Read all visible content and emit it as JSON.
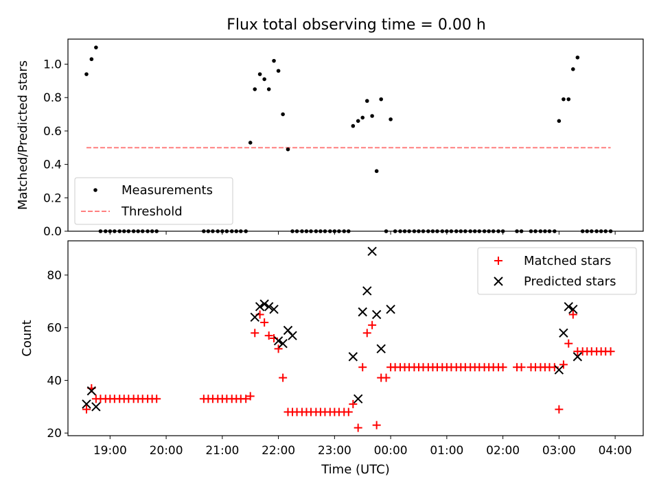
{
  "figure": {
    "title": "Flux total observing time = 0.00 h"
  },
  "colors": {
    "measurement": "#000000",
    "threshold": "#ff7f7f",
    "matched": "#ff0000",
    "predicted": "#000000"
  },
  "chart_data": [
    {
      "type": "scatter",
      "title": "Flux total observing time = 0.00 h",
      "xlabel": "",
      "ylabel": "Matched/Predicted stars",
      "xlim_hours": [
        18.25,
        28.5
      ],
      "ylim": [
        0,
        1.15
      ],
      "yticks": [
        0.0,
        0.2,
        0.4,
        0.6,
        0.8,
        1.0
      ],
      "ytick_labels": [
        "0.0",
        "0.2",
        "0.4",
        "0.6",
        "0.8",
        "1.0"
      ],
      "legend": {
        "position": "lower-left",
        "entries": [
          "Measurements",
          "Threshold"
        ]
      },
      "threshold": {
        "name": "Threshold",
        "value": 0.5,
        "x_range_hours": [
          18.58,
          27.92
        ]
      },
      "series": [
        {
          "name": "Measurements",
          "x_hours": [
            18.58,
            18.67,
            18.75,
            18.83,
            18.92,
            19.0,
            19.08,
            19.17,
            19.25,
            19.33,
            19.42,
            19.5,
            19.58,
            19.67,
            19.75,
            19.83,
            20.67,
            20.75,
            20.83,
            20.92,
            21.0,
            21.08,
            21.17,
            21.25,
            21.33,
            21.42,
            21.5,
            21.58,
            21.67,
            21.75,
            21.83,
            21.92,
            22.0,
            22.08,
            22.17,
            22.25,
            22.33,
            22.42,
            22.5,
            22.58,
            22.67,
            22.75,
            22.83,
            22.92,
            23.0,
            23.08,
            23.17,
            23.25,
            23.33,
            23.42,
            23.5,
            23.58,
            23.67,
            23.75,
            23.83,
            23.92,
            24.0,
            24.08,
            24.17,
            24.25,
            24.33,
            24.42,
            24.5,
            24.58,
            24.67,
            24.75,
            24.83,
            24.92,
            25.0,
            25.08,
            25.17,
            25.25,
            25.33,
            25.42,
            25.5,
            25.58,
            25.67,
            25.75,
            25.83,
            25.92,
            26.0,
            26.25,
            26.33,
            26.5,
            26.58,
            26.67,
            26.75,
            26.83,
            26.92,
            27.0,
            27.08,
            27.17,
            27.25,
            27.33,
            27.42,
            27.5,
            27.58,
            27.67,
            27.75,
            27.83,
            27.92
          ],
          "values": [
            0.94,
            1.03,
            1.1,
            0.0,
            0.0,
            0.0,
            0.0,
            0.0,
            0.0,
            0.0,
            0.0,
            0.0,
            0.0,
            0.0,
            0.0,
            0.0,
            0.0,
            0.0,
            0.0,
            0.0,
            0.0,
            0.0,
            0.0,
            0.0,
            0.0,
            0.0,
            0.53,
            0.85,
            0.94,
            0.91,
            0.85,
            1.02,
            0.96,
            0.7,
            0.49,
            0.0,
            0.0,
            0.0,
            0.0,
            0.0,
            0.0,
            0.0,
            0.0,
            0.0,
            0.0,
            0.0,
            0.0,
            0.0,
            0.63,
            0.66,
            0.68,
            0.78,
            0.69,
            0.36,
            0.79,
            0.0,
            0.67,
            0.0,
            0.0,
            0.0,
            0.0,
            0.0,
            0.0,
            0.0,
            0.0,
            0.0,
            0.0,
            0.0,
            0.0,
            0.0,
            0.0,
            0.0,
            0.0,
            0.0,
            0.0,
            0.0,
            0.0,
            0.0,
            0.0,
            0.0,
            0.0,
            0.0,
            0.0,
            0.0,
            0.0,
            0.0,
            0.0,
            0.0,
            0.0,
            0.66,
            0.79,
            0.79,
            0.97,
            1.04,
            0.0,
            0.0,
            0.0,
            0.0,
            0.0,
            0.0,
            0.0
          ]
        }
      ]
    },
    {
      "type": "scatter",
      "title": "",
      "xlabel": "Time (UTC)",
      "ylabel": "Count",
      "xlim_hours": [
        18.25,
        28.5
      ],
      "ylim": [
        19,
        93
      ],
      "yticks": [
        20,
        40,
        60,
        80
      ],
      "ytick_labels": [
        "20",
        "40",
        "60",
        "80"
      ],
      "xticks_hours": [
        19,
        20,
        21,
        22,
        23,
        24,
        25,
        26,
        27,
        28
      ],
      "xtick_labels": [
        "19:00",
        "20:00",
        "21:00",
        "22:00",
        "23:00",
        "00:00",
        "01:00",
        "02:00",
        "03:00",
        "04:00"
      ],
      "legend": {
        "position": "upper-right",
        "entries": [
          "Matched stars",
          "Predicted stars"
        ]
      },
      "series": [
        {
          "name": "Matched stars",
          "marker": "plus",
          "x_hours": [
            18.58,
            18.67,
            18.75,
            18.83,
            18.92,
            19.0,
            19.08,
            19.17,
            19.25,
            19.33,
            19.42,
            19.5,
            19.58,
            19.67,
            19.75,
            19.83,
            20.67,
            20.75,
            20.83,
            20.92,
            21.0,
            21.08,
            21.17,
            21.25,
            21.33,
            21.42,
            21.5,
            21.58,
            21.67,
            21.75,
            21.83,
            21.92,
            22.0,
            22.08,
            22.17,
            22.25,
            22.33,
            22.42,
            22.5,
            22.58,
            22.67,
            22.75,
            22.83,
            22.92,
            23.0,
            23.08,
            23.17,
            23.25,
            23.33,
            23.42,
            23.5,
            23.58,
            23.67,
            23.75,
            23.83,
            23.92,
            24.0,
            24.08,
            24.17,
            24.25,
            24.33,
            24.42,
            24.5,
            24.58,
            24.67,
            24.75,
            24.83,
            24.92,
            25.0,
            25.08,
            25.17,
            25.25,
            25.33,
            25.42,
            25.5,
            25.58,
            25.67,
            25.75,
            25.83,
            25.92,
            26.0,
            26.25,
            26.33,
            26.5,
            26.58,
            26.67,
            26.75,
            26.83,
            26.92,
            27.0,
            27.08,
            27.17,
            27.25,
            27.33,
            27.42,
            27.5,
            27.58,
            27.67,
            27.75,
            27.83,
            27.92
          ],
          "values": [
            29,
            37,
            33,
            33,
            33,
            33,
            33,
            33,
            33,
            33,
            33,
            33,
            33,
            33,
            33,
            33,
            33,
            33,
            33,
            33,
            33,
            33,
            33,
            33,
            33,
            33,
            34,
            58,
            65,
            62,
            57,
            56,
            52,
            41,
            28,
            28,
            28,
            28,
            28,
            28,
            28,
            28,
            28,
            28,
            28,
            28,
            28,
            28,
            31,
            22,
            45,
            58,
            61,
            23,
            41,
            41,
            45,
            45,
            45,
            45,
            45,
            45,
            45,
            45,
            45,
            45,
            45,
            45,
            45,
            45,
            45,
            45,
            45,
            45,
            45,
            45,
            45,
            45,
            45,
            45,
            45,
            45,
            45,
            45,
            45,
            45,
            45,
            45,
            45,
            29,
            46,
            54,
            65,
            51,
            51,
            51,
            51,
            51,
            51,
            51,
            51
          ]
        },
        {
          "name": "Predicted stars",
          "marker": "x",
          "x_hours": [
            18.58,
            18.67,
            18.75,
            21.58,
            21.67,
            21.75,
            21.83,
            21.92,
            22.0,
            22.08,
            22.17,
            22.25,
            23.33,
            23.42,
            23.5,
            23.58,
            23.67,
            23.75,
            23.83,
            24.0,
            27.0,
            27.08,
            27.17,
            27.25,
            27.33
          ],
          "values": [
            31,
            36,
            30,
            64,
            68,
            69,
            68,
            67,
            55,
            54,
            59,
            57,
            49,
            33,
            66,
            74,
            89,
            65,
            52,
            67,
            44,
            58,
            68,
            67,
            49
          ]
        }
      ]
    }
  ]
}
